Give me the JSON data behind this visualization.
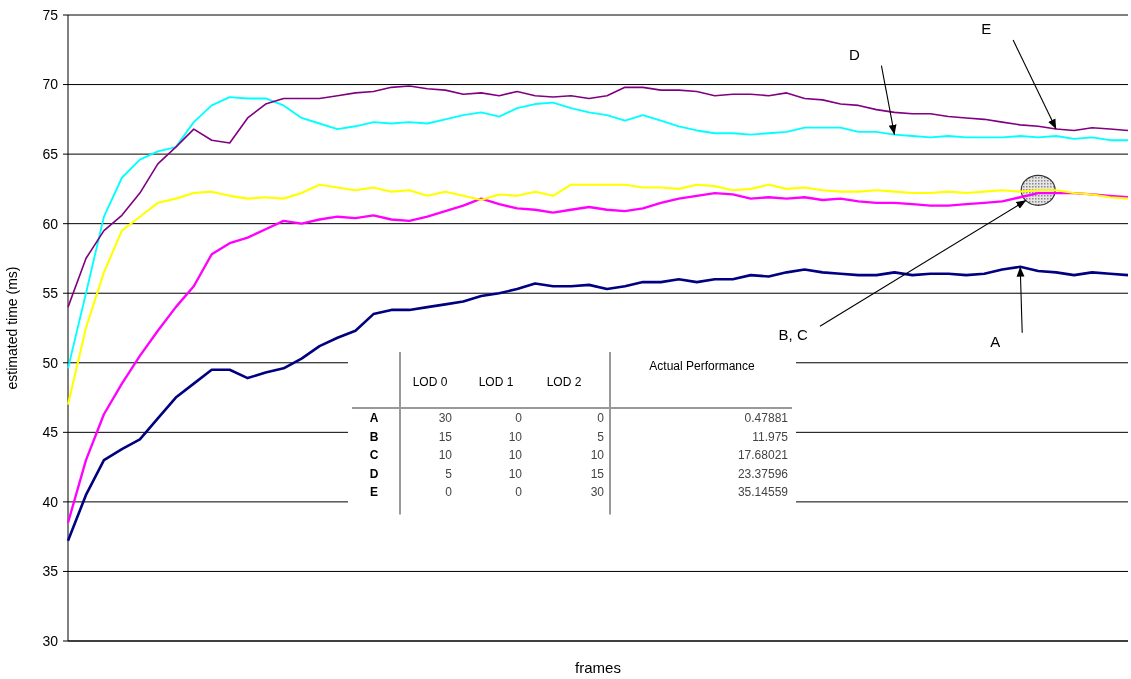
{
  "chart_data": [
    {
      "type": "line",
      "xlabel": "frames",
      "ylabel": "estimated time (ms)",
      "categories": [
        null,
        null,
        null,
        null,
        null,
        null,
        null,
        null,
        null,
        null,
        null,
        null,
        null,
        null,
        null,
        null,
        null,
        null,
        null,
        null,
        null,
        null,
        null,
        null,
        null,
        null,
        null,
        null,
        null,
        null,
        null,
        null,
        null,
        null,
        null,
        null,
        null,
        null,
        null,
        null,
        null,
        null,
        null,
        null,
        null,
        null,
        null,
        null,
        null,
        null,
        null,
        null,
        null,
        null,
        null,
        null,
        null,
        null,
        null,
        null
      ],
      "series": [
        {
          "color": "#000080",
          "values": [
            37.2,
            40.5,
            43.0,
            43.8,
            44.5,
            46.0,
            47.5,
            48.5,
            49.5,
            49.5,
            48.9,
            49.3,
            49.6,
            50.3,
            51.2,
            51.8,
            52.3,
            53.5,
            53.8,
            53.8,
            54.0,
            54.2,
            54.4,
            54.8,
            55.0,
            55.3,
            55.7,
            55.5,
            55.5,
            55.6,
            55.3,
            55.5,
            55.8,
            55.8,
            56.0,
            55.8,
            56.0,
            56.0,
            56.3,
            56.2,
            56.5,
            56.7,
            56.5,
            56.4,
            56.3,
            56.3,
            56.5,
            56.3,
            56.4,
            56.4,
            56.3,
            56.4,
            56.7,
            56.9,
            56.6,
            56.5,
            56.3,
            56.5,
            56.4,
            56.3
          ]
        },
        {
          "color": "#ff00ff",
          "values": [
            38.5,
            43.0,
            46.3,
            48.5,
            50.5,
            52.3,
            54.0,
            55.5,
            57.8,
            58.6,
            59.0,
            59.6,
            60.2,
            60.0,
            60.3,
            60.5,
            60.4,
            60.6,
            60.3,
            60.2,
            60.5,
            60.9,
            61.3,
            61.8,
            61.4,
            61.1,
            61.0,
            60.8,
            61.0,
            61.2,
            61.0,
            60.9,
            61.1,
            61.5,
            61.8,
            62.0,
            62.2,
            62.1,
            61.8,
            61.9,
            61.8,
            61.9,
            61.7,
            61.8,
            61.6,
            61.5,
            61.5,
            61.4,
            61.3,
            61.3,
            61.4,
            61.5,
            61.6,
            61.9,
            62.2,
            62.2,
            62.2,
            62.1,
            62.0,
            61.9
          ]
        },
        {
          "color": "#ffff00",
          "values": [
            47.0,
            52.5,
            56.5,
            59.5,
            60.5,
            61.5,
            61.8,
            62.2,
            62.3,
            62.0,
            61.8,
            61.9,
            61.8,
            62.2,
            62.8,
            62.6,
            62.4,
            62.6,
            62.3,
            62.4,
            62.0,
            62.3,
            62.0,
            61.7,
            62.1,
            62.0,
            62.3,
            62.0,
            62.8,
            62.8,
            62.8,
            62.8,
            62.6,
            62.6,
            62.5,
            62.8,
            62.7,
            62.4,
            62.5,
            62.8,
            62.5,
            62.6,
            62.4,
            62.3,
            62.3,
            62.4,
            62.3,
            62.2,
            62.2,
            62.3,
            62.2,
            62.3,
            62.4,
            62.3,
            62.4,
            62.4,
            62.2,
            62.1,
            61.9,
            61.8
          ]
        },
        {
          "color": "#00ffff",
          "values": [
            49.6,
            55.0,
            60.5,
            63.3,
            64.6,
            65.2,
            65.5,
            67.3,
            68.5,
            69.1,
            69.0,
            69.0,
            68.5,
            67.6,
            67.2,
            66.8,
            67.0,
            67.3,
            67.2,
            67.3,
            67.2,
            67.5,
            67.8,
            68.0,
            67.7,
            68.3,
            68.6,
            68.7,
            68.3,
            68.0,
            67.8,
            67.4,
            67.8,
            67.4,
            67.0,
            66.7,
            66.5,
            66.5,
            66.4,
            66.5,
            66.6,
            66.9,
            66.9,
            66.9,
            66.6,
            66.6,
            66.4,
            66.3,
            66.2,
            66.3,
            66.2,
            66.2,
            66.2,
            66.3,
            66.2,
            66.3,
            66.1,
            66.2,
            66.0,
            66.0
          ]
        },
        {
          "color": "#800080",
          "values": [
            54.0,
            57.5,
            59.5,
            60.6,
            62.2,
            64.3,
            65.5,
            66.8,
            66.0,
            65.8,
            67.6,
            68.6,
            69.0,
            69.0,
            69.0,
            69.2,
            69.4,
            69.5,
            69.8,
            69.9,
            69.7,
            69.6,
            69.3,
            69.4,
            69.2,
            69.5,
            69.2,
            69.1,
            69.2,
            69.0,
            69.2,
            69.8,
            69.8,
            69.6,
            69.6,
            69.5,
            69.2,
            69.3,
            69.3,
            69.2,
            69.4,
            69.0,
            68.9,
            68.6,
            68.5,
            68.2,
            68.0,
            67.9,
            67.9,
            67.7,
            67.6,
            67.5,
            67.3,
            67.1,
            67.0,
            66.8,
            66.7,
            66.9,
            66.8,
            66.7
          ]
        }
      ],
      "annotations": [
        "D",
        "E",
        "B, C",
        "A"
      ],
      "ylim": [
        30,
        75
      ],
      "yticks": [
        30,
        35,
        40,
        45,
        50,
        55,
        60,
        65,
        70,
        75
      ],
      "grid": "y"
    },
    {
      "type": "other",
      "categories": [
        null,
        "LOD 0",
        "LOD 1",
        "LOD 2",
        "Actual Performance"
      ],
      "y_categories": [
        "A",
        "B",
        "C",
        "D",
        "E"
      ],
      "cell_labels": [
        [
          "30",
          "0",
          "0",
          "0.47881"
        ],
        [
          "15",
          "10",
          "5",
          "11.975"
        ],
        [
          "10",
          "10",
          "10",
          "17.68021"
        ],
        [
          "5",
          "10",
          "15",
          "23.37596"
        ],
        [
          "0",
          "0",
          "30",
          "35.14559"
        ]
      ]
    }
  ]
}
